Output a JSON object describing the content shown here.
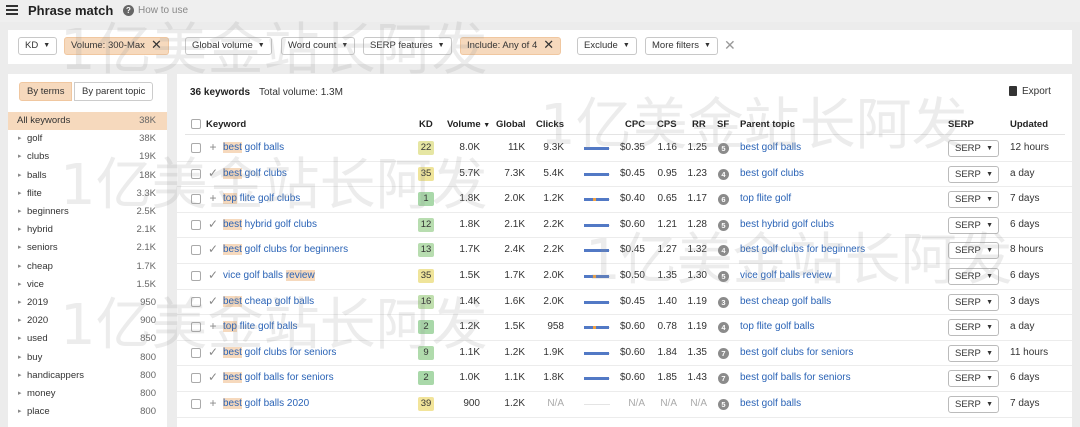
{
  "header": {
    "title": "Phrase match",
    "help_label": "How to use"
  },
  "filters": [
    {
      "label": "KD",
      "active": false,
      "removable": false
    },
    {
      "label": "Volume: 300-Max",
      "active": true,
      "removable": true
    },
    {
      "label": "Global volume",
      "active": false,
      "removable": false
    },
    {
      "label": "Word count",
      "active": false,
      "removable": false
    },
    {
      "label": "SERP features",
      "active": false,
      "removable": false
    },
    {
      "label": "Include: Any of 4",
      "active": true,
      "removable": true
    },
    {
      "label": "Exclude",
      "active": false,
      "removable": false
    },
    {
      "label": "More filters",
      "active": false,
      "removable": false
    }
  ],
  "left_panel": {
    "toggle_terms": "By terms",
    "toggle_parent": "By parent topic",
    "terms": [
      {
        "label": "All keywords",
        "count": "38K"
      },
      {
        "label": "golf",
        "count": "38K"
      },
      {
        "label": "clubs",
        "count": "19K"
      },
      {
        "label": "balls",
        "count": "18K"
      },
      {
        "label": "flite",
        "count": "3.3K"
      },
      {
        "label": "beginners",
        "count": "2.5K"
      },
      {
        "label": "hybrid",
        "count": "2.1K"
      },
      {
        "label": "seniors",
        "count": "2.1K"
      },
      {
        "label": "cheap",
        "count": "1.7K"
      },
      {
        "label": "vice",
        "count": "1.5K"
      },
      {
        "label": "2019",
        "count": "950"
      },
      {
        "label": "2020",
        "count": "900"
      },
      {
        "label": "used",
        "count": "850"
      },
      {
        "label": "buy",
        "count": "800"
      },
      {
        "label": "handicappers",
        "count": "800"
      },
      {
        "label": "money",
        "count": "800"
      },
      {
        "label": "place",
        "count": "800"
      }
    ]
  },
  "summary": {
    "keywords": "36 keywords",
    "total_volume": "Total volume: 1.3M",
    "export": "Export"
  },
  "columns": {
    "keyword": "Keyword",
    "kd": "KD",
    "volume": "Volume",
    "global": "Global",
    "clicks": "Clicks",
    "cpc": "CPC",
    "cps": "CPS",
    "rr": "RR",
    "sf": "SF",
    "parent": "Parent topic",
    "serp": "SERP",
    "updated": "Updated"
  },
  "rows": [
    {
      "status": "+",
      "kw_hl": "best",
      "kw_mid": " golf balls",
      "kw_hl2": "",
      "kd": "22",
      "kd_color": "#e6e6a3",
      "volume": "8.0K",
      "global": "11K",
      "clicks": "9.3K",
      "click_fill": 0.95,
      "click_organic": 0.0,
      "cpc": "$0.35",
      "cps": "1.16",
      "rr": "1.25",
      "sf": "5",
      "parent": "best golf balls",
      "serp": "SERP",
      "updated": "12 hours"
    },
    {
      "status": "✓",
      "kw_hl": "best",
      "kw_mid": " golf clubs",
      "kw_hl2": "",
      "kd": "35",
      "kd_color": "#efe49a",
      "volume": "5.7K",
      "global": "7.3K",
      "clicks": "5.4K",
      "click_fill": 0.95,
      "click_organic": 0.0,
      "cpc": "$0.45",
      "cps": "0.95",
      "rr": "1.23",
      "sf": "4",
      "parent": "best golf clubs",
      "serp": "SERP",
      "updated": "a day"
    },
    {
      "status": "+",
      "kw_hl": "top",
      "kw_mid": " flite golf clubs",
      "kw_hl2": "",
      "kd": "1",
      "kd_color": "#a9d8a9",
      "volume": "1.8K",
      "global": "2.0K",
      "clicks": "1.2K",
      "click_fill": 0.95,
      "click_organic": 0.12,
      "cpc": "$0.40",
      "cps": "0.65",
      "rr": "1.17",
      "sf": "6",
      "parent": "top flite golf",
      "serp": "SERP",
      "updated": "7 days"
    },
    {
      "status": "✓",
      "kw_hl": "best",
      "kw_mid": " hybrid golf clubs",
      "kw_hl2": "",
      "kd": "12",
      "kd_color": "#b8ddb0",
      "volume": "1.8K",
      "global": "2.1K",
      "clicks": "2.2K",
      "click_fill": 0.95,
      "click_organic": 0.0,
      "cpc": "$0.60",
      "cps": "1.21",
      "rr": "1.28",
      "sf": "5",
      "parent": "best hybrid golf clubs",
      "serp": "SERP",
      "updated": "6 days"
    },
    {
      "status": "✓",
      "kw_hl": "best",
      "kw_mid": " golf clubs for beginners",
      "kw_hl2": "",
      "kd": "13",
      "kd_color": "#b8ddb0",
      "volume": "1.7K",
      "global": "2.4K",
      "clicks": "2.2K",
      "click_fill": 0.95,
      "click_organic": 0.0,
      "cpc": "$0.45",
      "cps": "1.27",
      "rr": "1.32",
      "sf": "4",
      "parent": "best golf clubs for beginners",
      "serp": "SERP",
      "updated": "8 hours"
    },
    {
      "status": "✓",
      "kw_hl": "",
      "kw_mid": "vice golf balls ",
      "kw_hl2": "review",
      "kd": "35",
      "kd_color": "#efe49a",
      "volume": "1.5K",
      "global": "1.7K",
      "clicks": "2.0K",
      "click_fill": 0.95,
      "click_organic": 0.12,
      "cpc": "$0.50",
      "cps": "1.35",
      "rr": "1.30",
      "sf": "5",
      "parent": "vice golf balls review",
      "serp": "SERP",
      "updated": "6 days"
    },
    {
      "status": "✓",
      "kw_hl": "best",
      "kw_mid": " cheap golf balls",
      "kw_hl2": "",
      "kd": "16",
      "kd_color": "#c0dfae",
      "volume": "1.4K",
      "global": "1.6K",
      "clicks": "2.0K",
      "click_fill": 0.95,
      "click_organic": 0.0,
      "cpc": "$0.45",
      "cps": "1.40",
      "rr": "1.19",
      "sf": "3",
      "parent": "best cheap golf balls",
      "serp": "SERP",
      "updated": "3 days"
    },
    {
      "status": "+",
      "kw_hl": "top",
      "kw_mid": " flite golf balls",
      "kw_hl2": "",
      "kd": "2",
      "kd_color": "#a9d8a9",
      "volume": "1.2K",
      "global": "1.5K",
      "clicks": "958",
      "click_fill": 0.95,
      "click_organic": 0.12,
      "cpc": "$0.60",
      "cps": "0.78",
      "rr": "1.19",
      "sf": "4",
      "parent": "top flite golf balls",
      "serp": "SERP",
      "updated": "a day"
    },
    {
      "status": "✓",
      "kw_hl": "best",
      "kw_mid": " golf clubs for seniors",
      "kw_hl2": "",
      "kd": "9",
      "kd_color": "#b0dbac",
      "volume": "1.1K",
      "global": "1.2K",
      "clicks": "1.9K",
      "click_fill": 0.95,
      "click_organic": 0.0,
      "cpc": "$0.60",
      "cps": "1.84",
      "rr": "1.35",
      "sf": "7",
      "parent": "best golf clubs for seniors",
      "serp": "SERP",
      "updated": "11 hours"
    },
    {
      "status": "✓",
      "kw_hl": "best",
      "kw_mid": " golf balls for seniors",
      "kw_hl2": "",
      "kd": "2",
      "kd_color": "#a9d8a9",
      "volume": "1.0K",
      "global": "1.1K",
      "clicks": "1.8K",
      "click_fill": 0.95,
      "click_organic": 0.0,
      "cpc": "$0.60",
      "cps": "1.85",
      "rr": "1.43",
      "sf": "7",
      "parent": "best golf balls for seniors",
      "serp": "SERP",
      "updated": "6 days"
    },
    {
      "status": "+",
      "kw_hl": "best",
      "kw_mid": " golf balls 2020",
      "kw_hl2": "",
      "kd": "39",
      "kd_color": "#f2e49a",
      "volume": "900",
      "global": "1.2K",
      "clicks": "N/A",
      "click_fill": 0.0,
      "click_organic": 0.0,
      "cpc": "N/A",
      "cps": "N/A",
      "rr": "N/A",
      "sf": "5",
      "parent": "best golf balls",
      "serp": "SERP",
      "updated": "7 days"
    }
  ],
  "watermark": "1亿美金站长阿发"
}
